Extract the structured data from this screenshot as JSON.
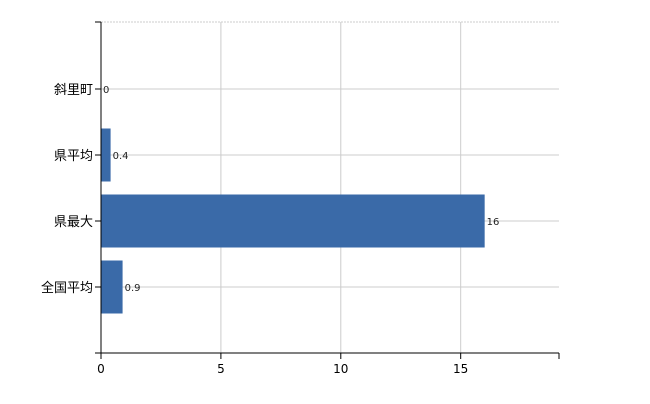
{
  "chart_data": {
    "type": "bar",
    "orientation": "horizontal",
    "categories": [
      "斜里町",
      "県平均",
      "県最大",
      "全国平均"
    ],
    "values": [
      0,
      0.4,
      16,
      0.9
    ],
    "data_labels": [
      "0",
      "0.4",
      "16",
      "0.9"
    ],
    "title": "",
    "xlabel": "",
    "ylabel": "",
    "xlim": [
      0,
      19.1
    ],
    "xticks": [
      0,
      5,
      10,
      15
    ],
    "grid": true,
    "bar_color": "#3a6aa8",
    "grid_color": "#cccccc"
  }
}
